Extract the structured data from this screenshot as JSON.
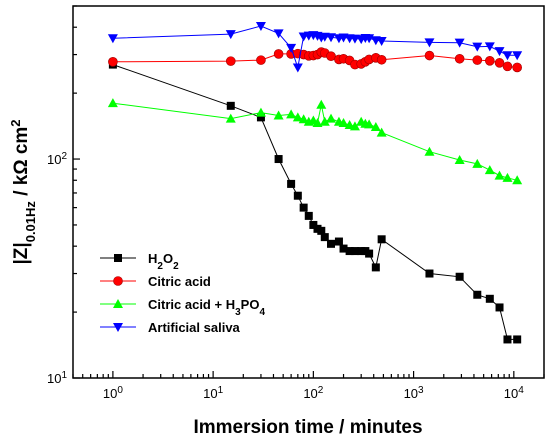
{
  "chart_data": {
    "type": "line",
    "xlabel": "Immersion time / minutes",
    "ylabel": "|Z|0.01Hz / kΩ cm2",
    "x_scale": "log",
    "y_scale": "log",
    "xlim": [
      0.4,
      20000
    ],
    "ylim": [
      10,
      500
    ],
    "x_ticks": [
      1,
      10,
      100,
      1000,
      10000
    ],
    "y_ticks": [
      10,
      100
    ],
    "legend_position": "bottom-left",
    "series": [
      {
        "name": "H2O2",
        "color": "#000000",
        "marker": "square",
        "x": [
          1,
          15,
          30,
          45,
          60,
          70,
          80,
          90,
          100,
          110,
          120,
          130,
          150,
          180,
          200,
          230,
          260,
          300,
          330,
          360,
          420,
          480,
          1440,
          2880,
          4320,
          5760,
          7200,
          8640,
          10800
        ],
        "y": [
          270,
          175,
          155,
          100,
          77,
          68,
          60,
          55,
          50,
          48,
          47,
          44,
          41,
          42,
          39,
          38,
          38,
          38,
          38,
          37,
          32,
          43,
          30,
          29,
          24,
          23,
          21,
          15,
          15
        ]
      },
      {
        "name": "Citric acid",
        "color": "#ff0000",
        "marker": "circle",
        "x": [
          1,
          15,
          30,
          45,
          60,
          70,
          80,
          90,
          100,
          110,
          120,
          130,
          150,
          180,
          200,
          230,
          260,
          300,
          330,
          360,
          420,
          480,
          1440,
          2880,
          4320,
          5760,
          7200,
          8640,
          10800
        ],
        "y": [
          278,
          280,
          283,
          302,
          302,
          303,
          300,
          296,
          297,
          300,
          308,
          305,
          295,
          285,
          287,
          282,
          270,
          272,
          278,
          285,
          290,
          284,
          297,
          287,
          283,
          281,
          275,
          265,
          262
        ]
      },
      {
        "name": "Citric acid + H3PO4",
        "color": "#00ff00",
        "marker": "triangle-up",
        "x": [
          1,
          15,
          30,
          45,
          60,
          70,
          80,
          90,
          100,
          110,
          120,
          130,
          150,
          180,
          200,
          230,
          260,
          300,
          330,
          360,
          420,
          480,
          1440,
          2880,
          4320,
          5760,
          7200,
          8640,
          10800
        ],
        "y": [
          180,
          153,
          163,
          158,
          160,
          155,
          152,
          148,
          150,
          146,
          177,
          148,
          153,
          148,
          146,
          143,
          141,
          148,
          145,
          144,
          140,
          132,
          108,
          99,
          95,
          89,
          84,
          82,
          80
        ]
      },
      {
        "name": "Artificial saliva",
        "color": "#0000ff",
        "marker": "triangle-down",
        "x": [
          1,
          15,
          30,
          45,
          60,
          70,
          80,
          90,
          100,
          110,
          120,
          130,
          150,
          180,
          200,
          230,
          260,
          300,
          330,
          360,
          420,
          480,
          1440,
          2880,
          4320,
          5760,
          7200,
          8640,
          10800
        ],
        "y": [
          356,
          372,
          405,
          375,
          322,
          262,
          363,
          366,
          368,
          365,
          359,
          362,
          360,
          356,
          359,
          356,
          355,
          353,
          357,
          356,
          349,
          346,
          341,
          340,
          326,
          327,
          311,
          298,
          298
        ]
      }
    ]
  }
}
